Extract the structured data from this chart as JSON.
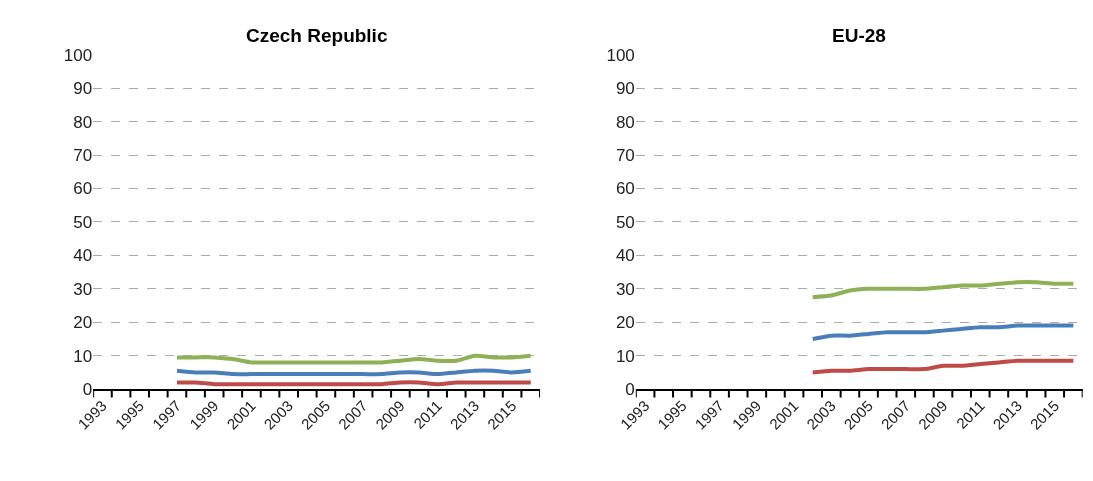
{
  "chart_data": [
    {
      "type": "line",
      "title": "Czech Republic",
      "categories": [
        "1993",
        null,
        "1995",
        null,
        "1997",
        null,
        "1999",
        null,
        "2001",
        null,
        "2003",
        null,
        "2005",
        null,
        "2007",
        null,
        "2009",
        null,
        "2011",
        null,
        "2013",
        null,
        "2015",
        null
      ],
      "series": [
        {
          "color": "#8db255",
          "values": [
            null,
            null,
            null,
            null,
            9.5,
            9.5,
            9.5,
            9,
            8,
            8,
            8,
            8,
            8,
            8,
            8,
            8,
            8.5,
            9,
            8.5,
            8.5,
            10,
            9.5,
            9.5,
            10
          ]
        },
        {
          "color": "#4a7ebb",
          "values": [
            null,
            null,
            null,
            null,
            5.5,
            5,
            5,
            4.5,
            4.5,
            4.5,
            4.5,
            4.5,
            4.5,
            4.5,
            4.5,
            4.5,
            5,
            5,
            4.5,
            5,
            5.5,
            5.5,
            5,
            5.5
          ]
        },
        {
          "color": "#be4b48",
          "values": [
            null,
            null,
            null,
            null,
            2,
            2,
            1.5,
            1.5,
            1.5,
            1.5,
            1.5,
            1.5,
            1.5,
            1.5,
            1.5,
            1.5,
            2,
            2,
            1.5,
            2,
            2,
            2,
            2,
            2
          ]
        }
      ],
      "ylim": [
        0,
        100
      ],
      "yticks": [
        0,
        10,
        20,
        30,
        40,
        50,
        60,
        70,
        80,
        90,
        100
      ],
      "grid": "y",
      "line_style": "solid",
      "marker": "none"
    },
    {
      "type": "line",
      "title": "EU-28",
      "categories": [
        "1993",
        null,
        "1995",
        null,
        "1997",
        null,
        "1999",
        null,
        "2001",
        null,
        "2003",
        null,
        "2005",
        null,
        "2007",
        null,
        "2009",
        null,
        "2011",
        null,
        "2013",
        null,
        "2015",
        null
      ],
      "series": [
        {
          "color": "#8db255",
          "values": [
            null,
            null,
            null,
            null,
            null,
            null,
            null,
            null,
            null,
            27.5,
            28,
            29.5,
            30,
            30,
            30,
            30,
            30.5,
            31,
            31,
            31.5,
            32,
            32,
            31.5,
            31.5
          ]
        },
        {
          "color": "#4a7ebb",
          "values": [
            null,
            null,
            null,
            null,
            null,
            null,
            null,
            null,
            null,
            15,
            16,
            16,
            16.5,
            17,
            17,
            17,
            17.5,
            18,
            18.5,
            18.5,
            19,
            19,
            19,
            19
          ]
        },
        {
          "color": "#be4b48",
          "values": [
            null,
            null,
            null,
            null,
            null,
            null,
            null,
            null,
            null,
            5,
            5.5,
            5.5,
            6,
            6,
            6,
            6,
            7,
            7,
            7.5,
            8,
            8.5,
            8.5,
            8.5,
            8.5
          ]
        }
      ],
      "ylim": [
        0,
        100
      ],
      "yticks": [
        0,
        10,
        20,
        30,
        40,
        50,
        60,
        70,
        80,
        90,
        100
      ],
      "grid": "y",
      "line_style": "solid",
      "marker": "none"
    }
  ]
}
